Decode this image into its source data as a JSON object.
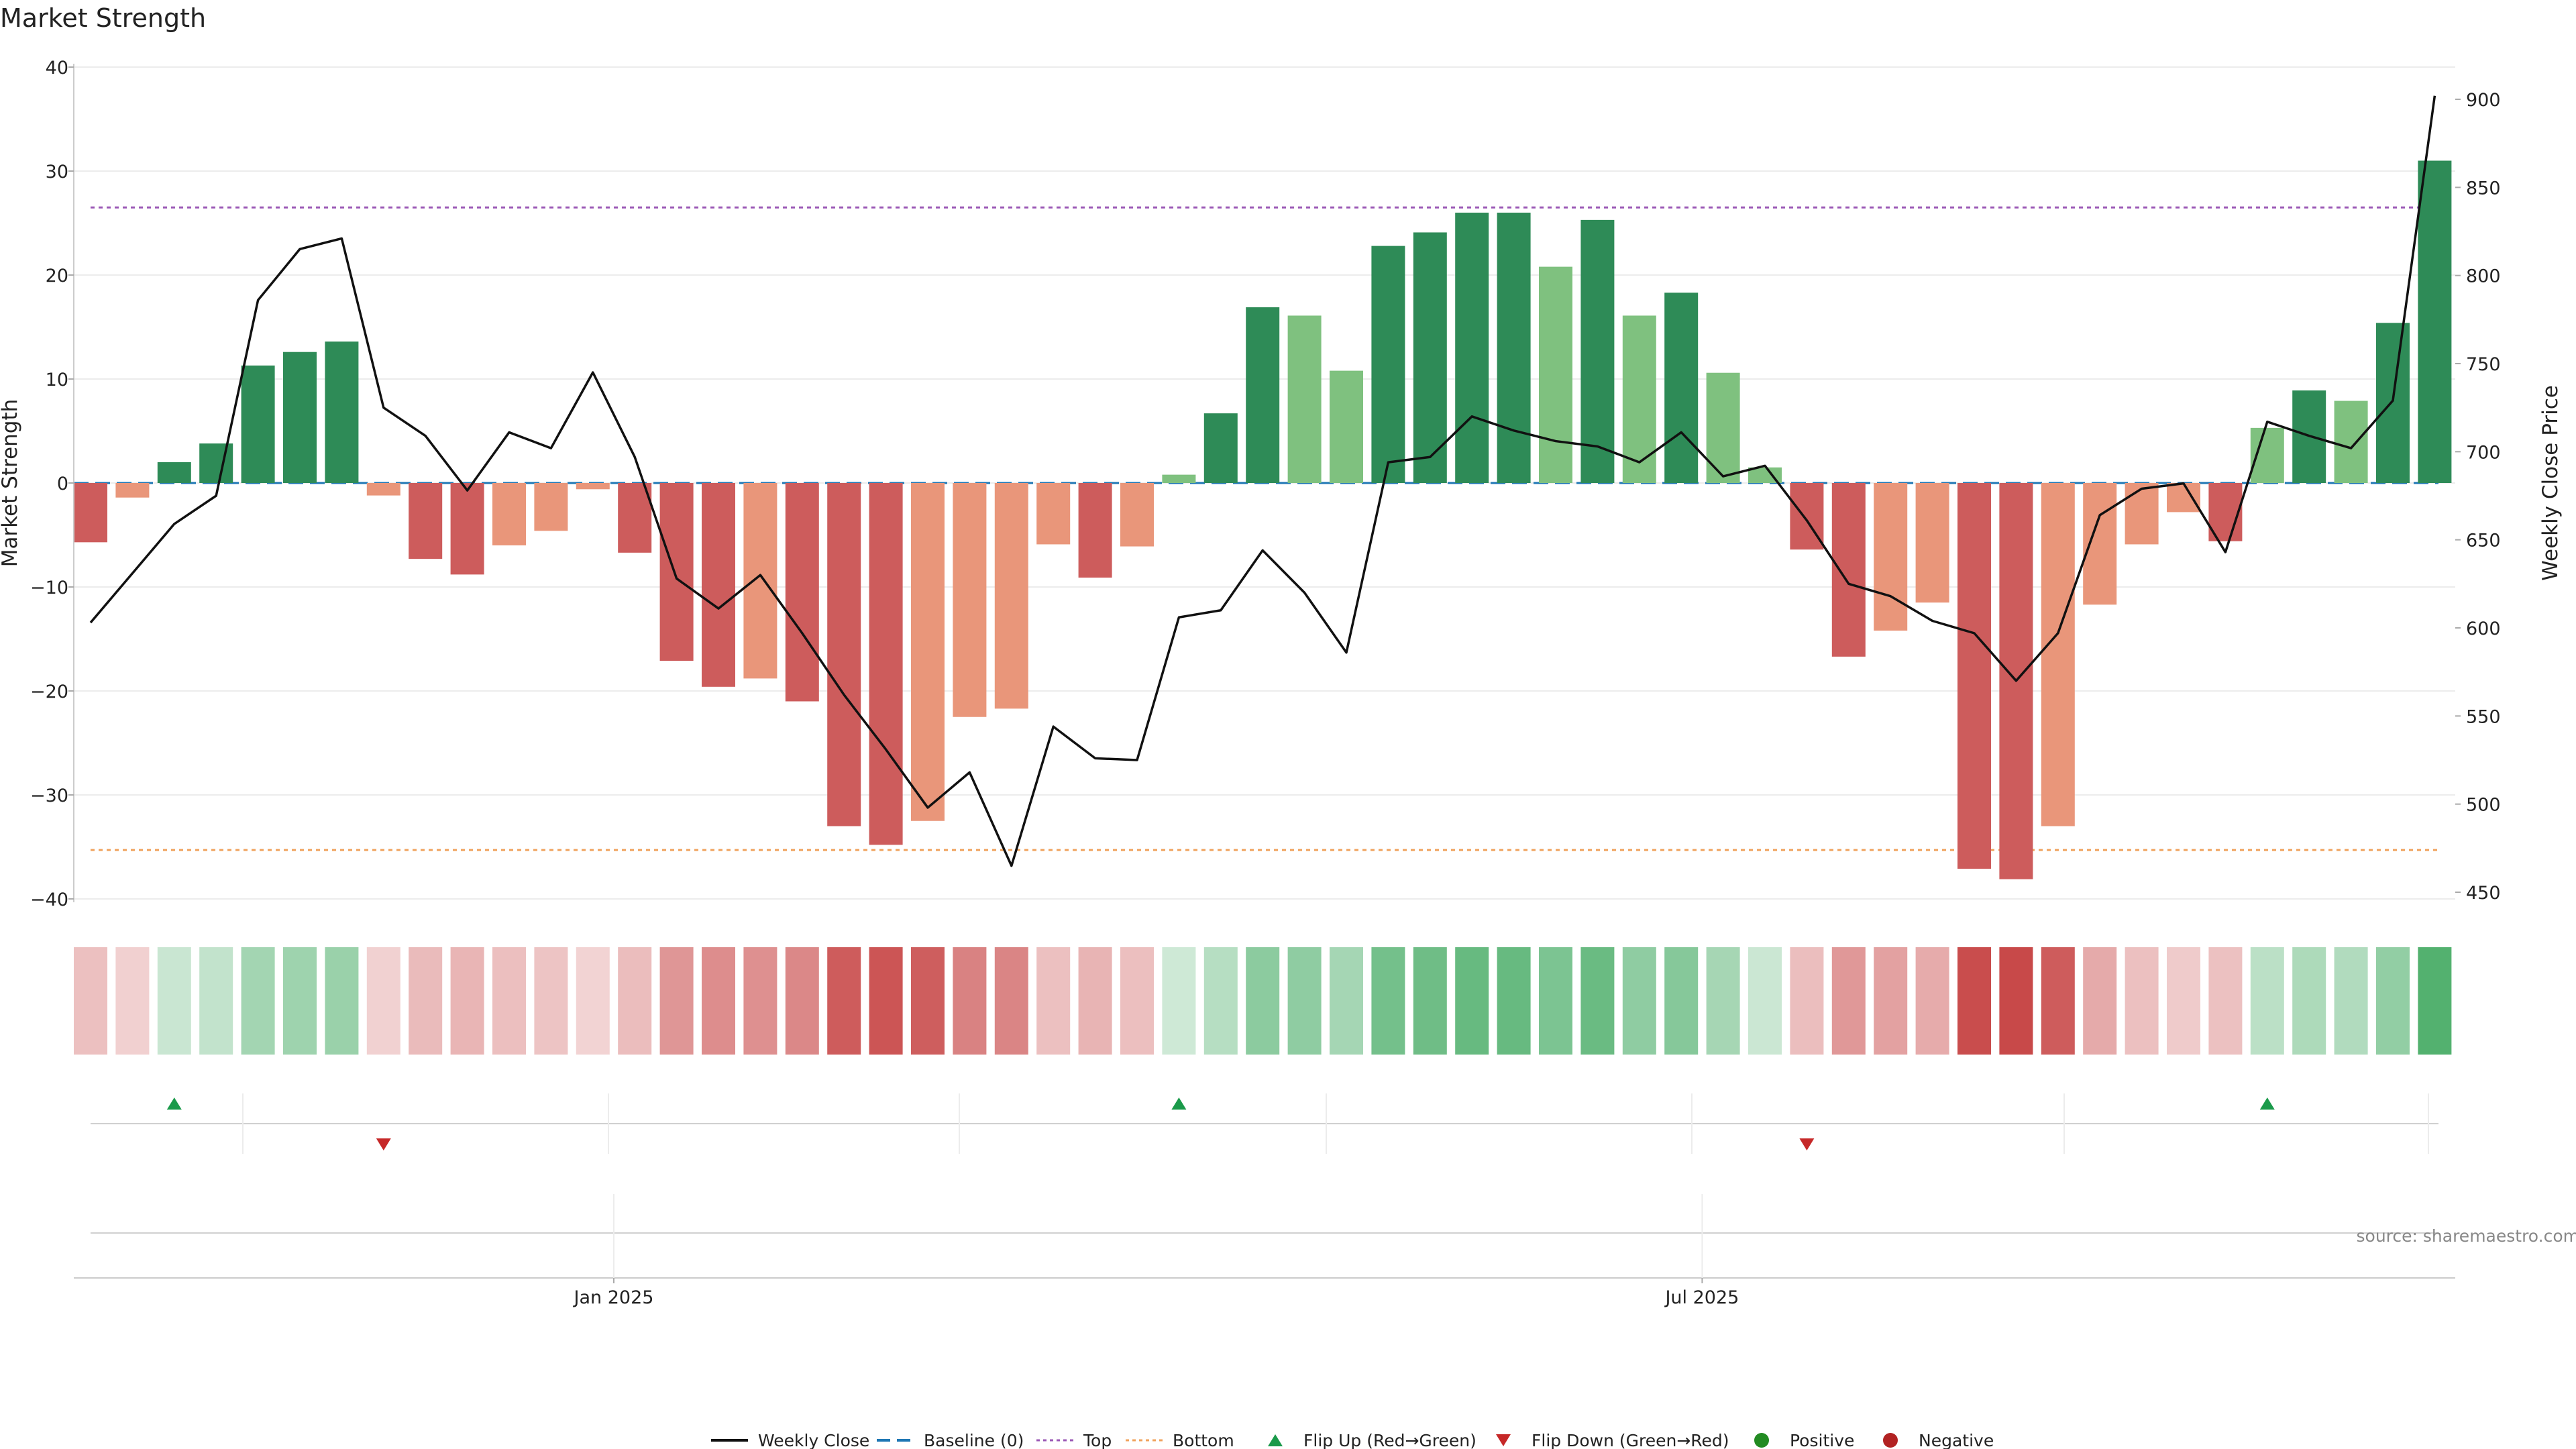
{
  "chart_data": {
    "type": "bar",
    "title": "Market Strength",
    "ylabel": "Market Strength",
    "y2label": "Weekly Close Price",
    "ylim": [
      -40,
      40
    ],
    "y2lim": [
      450,
      900
    ],
    "yticks": [
      40,
      30,
      20,
      10,
      0,
      -10,
      -20,
      -30,
      -40
    ],
    "y2ticks": [
      900,
      850,
      800,
      750,
      700,
      650,
      600,
      550,
      500,
      450
    ],
    "xticks": [
      {
        "index": 12.5,
        "label": "Jan 2025"
      },
      {
        "index": 38.5,
        "label": "Jul 2025"
      }
    ],
    "top_line": 26.5,
    "bottom_line": -35.3,
    "baseline": 0,
    "strength": [
      -5.7,
      -1.4,
      2,
      3.8,
      11.3,
      12.6,
      13.6,
      -1.2,
      -7.3,
      -8.8,
      -6,
      -4.6,
      -0.6,
      -6.7,
      -17.1,
      -19.6,
      -18.8,
      -21,
      -33,
      -34.8,
      -32.5,
      -22.5,
      -21.7,
      -5.9,
      -9.1,
      -6.1,
      0.8,
      6.7,
      16.9,
      16.1,
      10.8,
      22.8,
      24.1,
      26,
      26,
      20.8,
      25.3,
      16.1,
      18.3,
      10.6,
      1.5,
      -6.4,
      -16.7,
      -14.2,
      -11.5,
      -37.1,
      -38.1,
      -33,
      -11.7,
      -5.9,
      -2.8,
      -5.6,
      5.3,
      8.9,
      7.9,
      15.4,
      31
    ],
    "weekly_close": [
      603,
      631,
      659,
      675,
      786,
      815,
      821,
      725,
      709,
      678,
      711,
      702,
      745,
      697,
      628,
      611,
      630,
      597,
      562,
      531,
      498,
      518,
      465,
      544,
      526,
      525,
      606,
      610,
      644,
      620,
      586,
      694,
      697,
      720,
      712,
      706,
      703,
      694,
      711,
      686,
      692,
      661,
      625,
      618,
      604,
      597,
      570,
      597,
      664,
      679,
      682,
      643,
      717,
      709,
      702,
      729,
      902
    ],
    "flip_up_indices": [
      2,
      26,
      52
    ],
    "flip_down_indices": [
      7,
      41
    ],
    "legend": [
      "Weekly Close",
      "Baseline (0)",
      "Top",
      "Bottom",
      "Flip Up (Red→Green)",
      "Flip Down (Green→Red)",
      "Positive",
      "Negative"
    ],
    "source": "source: sharemaestro.com"
  },
  "colors": {
    "strong_green": "#2e8b57",
    "light_green": "#7fc17f",
    "strong_red": "#cd5c5c",
    "light_red": "#e9967a",
    "top_line": "#9b59b6",
    "bottom_line": "#f0a35e",
    "baseline": "#1f77b4",
    "flip_up": "#1a9a4a",
    "flip_down": "#c62828",
    "positive_dot": "#228b22",
    "negative_dot": "#b22222"
  }
}
